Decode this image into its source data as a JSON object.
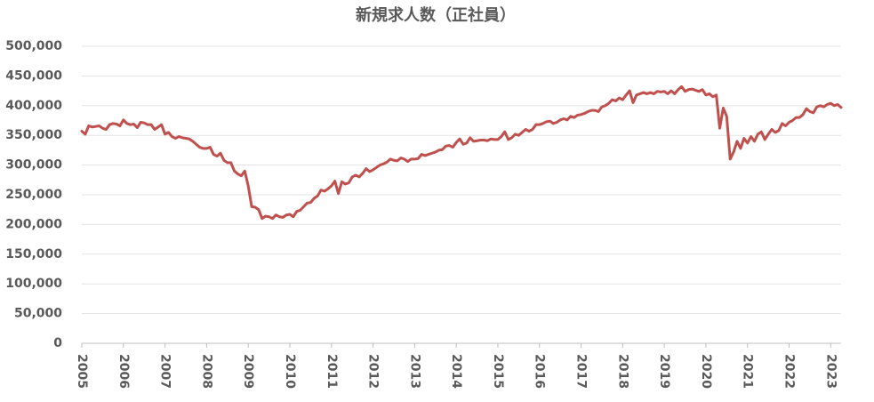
{
  "chart_data": {
    "type": "line",
    "title": "新規求人数（正社員）",
    "color": "#c0504d",
    "grid": true,
    "ylim": [
      0,
      500000
    ],
    "yticks": [
      0,
      {
        "value": 50000,
        "label": "50,000"
      },
      {
        "value": 100000,
        "label": "100,000"
      },
      {
        "value": 150000,
        "label": "150,000"
      },
      {
        "value": 200000,
        "label": "200,000"
      },
      {
        "value": 250000,
        "label": "250,000"
      },
      {
        "value": 300000,
        "label": "300,000"
      },
      {
        "value": 350000,
        "label": "350,000"
      },
      {
        "value": 400000,
        "label": "400,000"
      },
      {
        "value": 450000,
        "label": "450,000"
      },
      {
        "value": 500000,
        "label": "500,000"
      }
    ],
    "categories": [
      "2005",
      null,
      null,
      null,
      null,
      null,
      null,
      null,
      null,
      null,
      null,
      null,
      "2006",
      null,
      null,
      null,
      null,
      null,
      null,
      null,
      null,
      null,
      null,
      null,
      "2007",
      null,
      null,
      null,
      null,
      null,
      null,
      null,
      null,
      null,
      null,
      null,
      "2008",
      null,
      null,
      null,
      null,
      null,
      null,
      null,
      null,
      null,
      null,
      null,
      "2009",
      null,
      null,
      null,
      null,
      null,
      null,
      null,
      null,
      null,
      null,
      null,
      "2010",
      null,
      null,
      null,
      null,
      null,
      null,
      null,
      null,
      null,
      null,
      null,
      "2011",
      null,
      null,
      null,
      null,
      null,
      null,
      null,
      null,
      null,
      null,
      null,
      "2012",
      null,
      null,
      null,
      null,
      null,
      null,
      null,
      null,
      null,
      null,
      null,
      "2013",
      null,
      null,
      null,
      null,
      null,
      null,
      null,
      null,
      null,
      null,
      null,
      "2014",
      null,
      null,
      null,
      null,
      null,
      null,
      null,
      null,
      null,
      null,
      null,
      "2015",
      null,
      null,
      null,
      null,
      null,
      null,
      null,
      null,
      null,
      null,
      null,
      "2016",
      null,
      null,
      null,
      null,
      null,
      null,
      null,
      null,
      null,
      null,
      null,
      "2017",
      null,
      null,
      null,
      null,
      null,
      null,
      null,
      null,
      null,
      null,
      null,
      "2018",
      null,
      null,
      null,
      null,
      null,
      null,
      null,
      null,
      null,
      null,
      null,
      "2019",
      null,
      null,
      null,
      null,
      null,
      null,
      null,
      null,
      null,
      null,
      null,
      "2020",
      null,
      null,
      null,
      null,
      null,
      null,
      null,
      null,
      null,
      null,
      null,
      "2021",
      null,
      null,
      null,
      null,
      null,
      null,
      null,
      null,
      null,
      null,
      null,
      "2022",
      null,
      null,
      null,
      null,
      null,
      null,
      null,
      null,
      null,
      null,
      null,
      "2023",
      null,
      null,
      null
    ],
    "values": [
      357000,
      352000,
      366000,
      364000,
      365000,
      366000,
      362000,
      360000,
      368000,
      370000,
      369000,
      366000,
      376000,
      370000,
      368000,
      369000,
      363000,
      372000,
      371000,
      368000,
      368000,
      360000,
      364000,
      368000,
      352000,
      355000,
      348000,
      345000,
      348000,
      346000,
      345000,
      344000,
      340000,
      335000,
      330000,
      328000,
      328000,
      330000,
      318000,
      315000,
      320000,
      308000,
      304000,
      304000,
      290000,
      285000,
      282000,
      290000,
      265000,
      230000,
      229000,
      225000,
      210000,
      214000,
      213000,
      210000,
      216000,
      213000,
      212000,
      216000,
      217000,
      213000,
      222000,
      224000,
      230000,
      236000,
      237000,
      244000,
      248000,
      258000,
      256000,
      260000,
      265000,
      273000,
      252000,
      272000,
      268000,
      270000,
      280000,
      283000,
      280000,
      286000,
      294000,
      289000,
      292000,
      296000,
      300000,
      302000,
      305000,
      310000,
      308000,
      307000,
      312000,
      310000,
      306000,
      310000,
      310000,
      311000,
      318000,
      316000,
      318000,
      320000,
      322000,
      325000,
      326000,
      332000,
      333000,
      330000,
      338000,
      344000,
      335000,
      337000,
      346000,
      340000,
      341000,
      342000,
      342000,
      341000,
      344000,
      343000,
      343000,
      348000,
      356000,
      343000,
      346000,
      352000,
      350000,
      355000,
      360000,
      357000,
      360000,
      368000,
      368000,
      370000,
      373000,
      374000,
      370000,
      372000,
      376000,
      378000,
      376000,
      382000,
      380000,
      384000,
      385000,
      387000,
      390000,
      392000,
      392000,
      390000,
      398000,
      400000,
      404000,
      410000,
      408000,
      413000,
      410000,
      418000,
      425000,
      405000,
      418000,
      420000,
      422000,
      420000,
      422000,
      420000,
      424000,
      423000,
      424000,
      420000,
      425000,
      420000,
      427000,
      432000,
      424000,
      427000,
      428000,
      426000,
      424000,
      427000,
      418000,
      420000,
      415000,
      418000,
      362000,
      396000,
      382000,
      310000,
      322000,
      340000,
      328000,
      345000,
      337000,
      348000,
      340000,
      352000,
      356000,
      343000,
      352000,
      360000,
      355000,
      358000,
      370000,
      366000,
      372000,
      375000,
      380000,
      380000,
      385000,
      395000,
      390000,
      388000,
      398000,
      400000,
      398000,
      402000,
      404000,
      400000,
      402000,
      397000
    ]
  }
}
